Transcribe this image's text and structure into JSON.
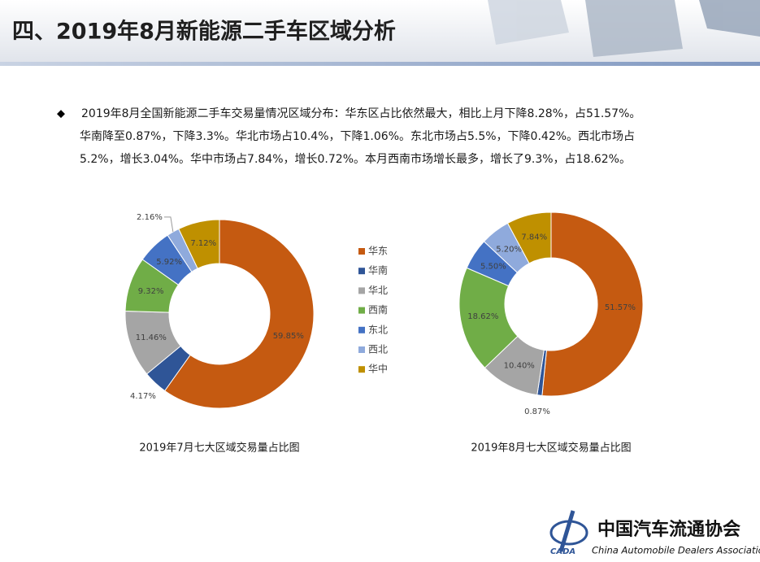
{
  "header": {
    "title": "四、2019年8月新能源二手车区域分析"
  },
  "bullet": {
    "lines": [
      "2019年8月全国新能源二手车交易量情况区域分布：华东区占比依然最大，相比上月下降8.28%，占51.57%。",
      "华南降至0.87%，下降3.3%。华北市场占10.4%，下降1.06%。东北市场占5.5%，下降0.42%。西北市场占",
      "5.2%，增长3.04%。华中市场占7.84%，增长0.72%。本月西南市场增长最多，增长了9.3%，占18.62%。"
    ]
  },
  "logo": {
    "name": "中国汽车流通协会",
    "english": "China Automobile Dealers Association",
    "abbr": "CADA"
  },
  "chart_data": [
    {
      "type": "donut",
      "title": "2019年7月七大区域交易量占比图",
      "categories": [
        "华东",
        "华南",
        "华北",
        "西南",
        "东北",
        "西北",
        "华中"
      ],
      "values": [
        59.85,
        4.17,
        11.46,
        9.32,
        5.92,
        2.16,
        7.12
      ],
      "value_labels": [
        "59.85%",
        "4.17%",
        "11.46%",
        "9.32%",
        "5.92%",
        "2.16%",
        "7.12%"
      ],
      "colors": [
        "#c55a11",
        "#2f5597",
        "#a5a5a5",
        "#70ad47",
        "#4472c4",
        "#8faadc",
        "#bf9000"
      ]
    },
    {
      "type": "donut",
      "title": "2019年8月七大区域交易量占比图",
      "categories": [
        "华东",
        "华南",
        "华北",
        "西南",
        "东北",
        "西北",
        "华中"
      ],
      "values": [
        51.57,
        0.87,
        10.4,
        18.62,
        5.5,
        5.2,
        7.84
      ],
      "value_labels": [
        "51.57%",
        "0.87%",
        "10.40%",
        "18.62%",
        "5.50%",
        "5.20%",
        "7.84%"
      ],
      "colors": [
        "#c55a11",
        "#2f5597",
        "#a5a5a5",
        "#70ad47",
        "#4472c4",
        "#8faadc",
        "#bf9000"
      ]
    }
  ]
}
